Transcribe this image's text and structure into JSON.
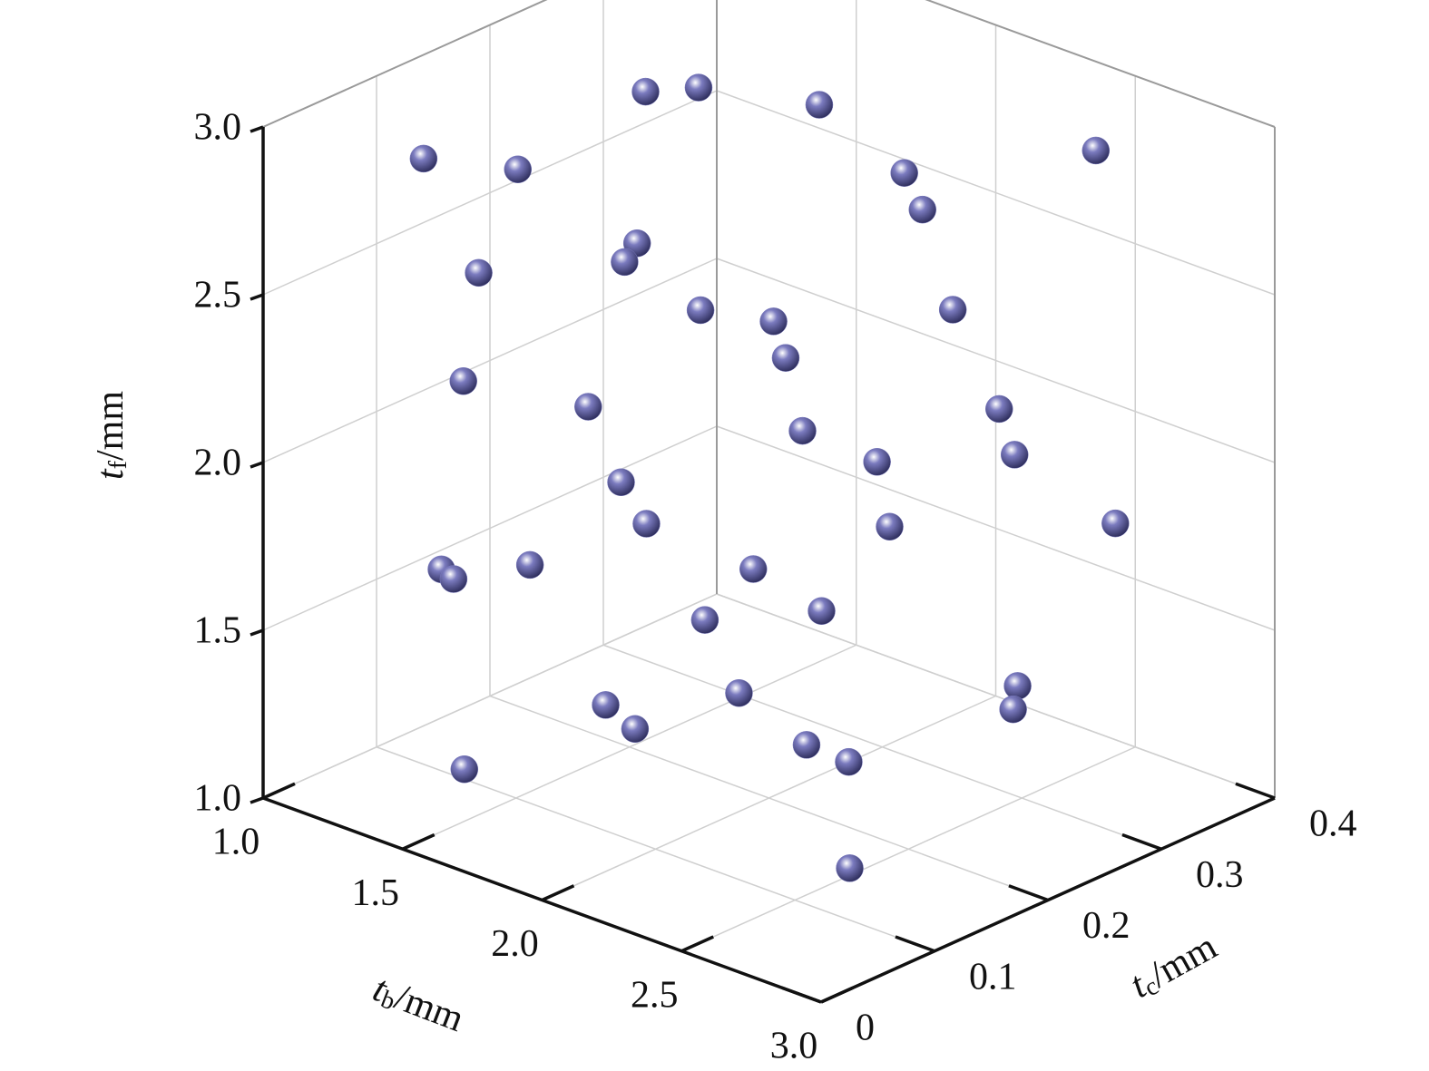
{
  "chart_data": {
    "type": "scatter3d",
    "xlabel": [
      "t",
      "b",
      "/mm"
    ],
    "ylabel": [
      "t",
      "c",
      "/mm"
    ],
    "zlabel": [
      "t",
      "f",
      "/mm"
    ],
    "xlim": [
      1,
      3
    ],
    "ylim": [
      0,
      0.4
    ],
    "zlim": [
      1,
      3
    ],
    "xticks": [
      {
        "value": 1,
        "label": "1.0"
      },
      {
        "value": 1.5,
        "label": "1.5"
      },
      {
        "value": 2,
        "label": "2.0"
      },
      {
        "value": 2.5,
        "label": "2.5"
      },
      {
        "value": 3,
        "label": "3.0"
      }
    ],
    "yticks": [
      0,
      0.1,
      0.2,
      0.3,
      0.4
    ],
    "zticks": [
      {
        "value": 1,
        "label": "1.0"
      },
      {
        "value": 1.5,
        "label": "1.5"
      },
      {
        "value": 2,
        "label": "2.0"
      },
      {
        "value": 2.5,
        "label": "2.5"
      },
      {
        "value": 3,
        "label": "3.0"
      }
    ],
    "grid": true,
    "series": [
      {
        "color": "#7b7bbf",
        "x": [
          1.25,
          1.1,
          1.07,
          1.26,
          1.53,
          2.44,
          2.16,
          1.9,
          1.69,
          1.32,
          1.61,
          2.08,
          1.61,
          2.09,
          2.06,
          1.23,
          1.84,
          2.5,
          1.47,
          2.55,
          2.23,
          1.47,
          2.13,
          2.27,
          2.51,
          1.07,
          1.52,
          1.55,
          1.7,
          2.27,
          1.12,
          2.81,
          2.55,
          1.73,
          1.74,
          1.52,
          2.46,
          2.53,
          1.64,
          2.94
        ],
        "y": [
          0.08,
          0.2,
          0.32,
          0.32,
          0.36,
          0.38,
          0.28,
          0.36,
          0.16,
          0.24,
          0.04,
          0.12,
          0.3,
          0.34,
          0.2,
          0.12,
          0.08,
          0.28,
          0.36,
          0.16,
          0.36,
          0.2,
          0.06,
          0.24,
          0.38,
          0.14,
          0.04,
          0.1,
          0.26,
          0.18,
          0.36,
          0.22,
          0.28,
          0.24,
          0.12,
          0.2,
          0.12,
          0.14,
          0.02,
          0.04
        ],
        "z": [
          2.86,
          2.6,
          2.64,
          2.71,
          2.68,
          2.79,
          2.79,
          2.48,
          2.62,
          2.33,
          2.69,
          2.6,
          2.15,
          2.27,
          2.33,
          2.13,
          2.3,
          2.19,
          1.69,
          2.23,
          1.85,
          1.78,
          2.07,
          1.83,
          1.7,
          1.49,
          1.75,
          1.71,
          1.5,
          1.67,
          1.02,
          1.55,
          1.31,
          1.17,
          1.32,
          1.06,
          1.42,
          1.36,
          1.25,
          1.32
        ]
      }
    ]
  }
}
